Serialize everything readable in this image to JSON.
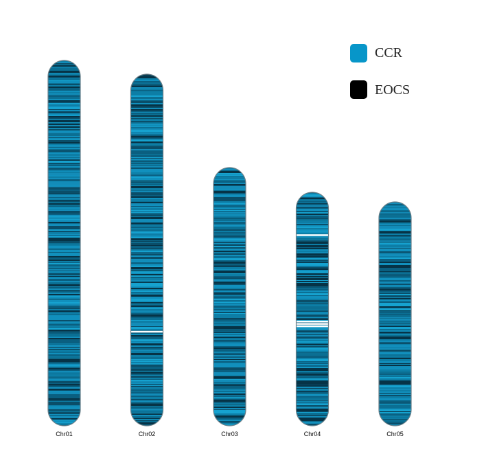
{
  "legend": [
    {
      "label": "CCR",
      "color": "#0796c9"
    },
    {
      "label": "EOCS",
      "color": "#000000"
    }
  ],
  "chromosomes": [
    {
      "name": "Chr01",
      "relative_length": 1.0,
      "white_bands": []
    },
    {
      "name": "Chr02",
      "relative_length": 0.962,
      "white_bands": [
        0.73
      ]
    },
    {
      "name": "Chr03",
      "relative_length": 0.707,
      "white_bands": []
    },
    {
      "name": "Chr04",
      "relative_length": 0.64,
      "white_bands": [
        0.18,
        0.55,
        0.56,
        0.57
      ]
    },
    {
      "name": "Chr05",
      "relative_length": 0.612,
      "white_bands": []
    }
  ]
}
